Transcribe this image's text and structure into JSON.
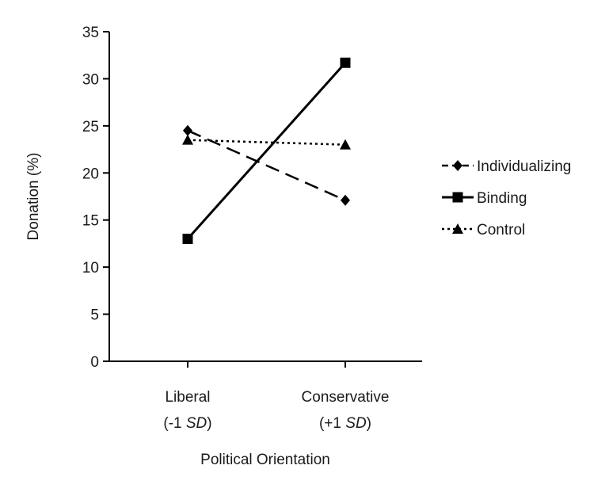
{
  "chart_data": {
    "type": "line",
    "title": "",
    "xlabel": "Political Orientation",
    "ylabel": "Donation (%)",
    "ylim": [
      0,
      35
    ],
    "yticks": [
      0,
      5,
      10,
      15,
      20,
      25,
      30,
      35
    ],
    "categories": [
      {
        "name": "Liberal",
        "sd_prefix": "(-1 ",
        "sd_label": "SD",
        "sd_suffix": ")"
      },
      {
        "name": "Conservative",
        "sd_prefix": "(+1 ",
        "sd_label": "SD",
        "sd_suffix": ")"
      }
    ],
    "grid": false,
    "legend_position": "right",
    "series": [
      {
        "name": "Individualizing",
        "values": [
          24.5,
          17.1
        ],
        "line_style": "dashed",
        "marker": "diamond",
        "color": "#000000"
      },
      {
        "name": "Binding",
        "values": [
          13.0,
          31.7
        ],
        "line_style": "solid",
        "marker": "square",
        "color": "#000000"
      },
      {
        "name": "Control",
        "values": [
          23.5,
          23.0
        ],
        "line_style": "dotted",
        "marker": "triangle",
        "color": "#000000"
      }
    ]
  }
}
